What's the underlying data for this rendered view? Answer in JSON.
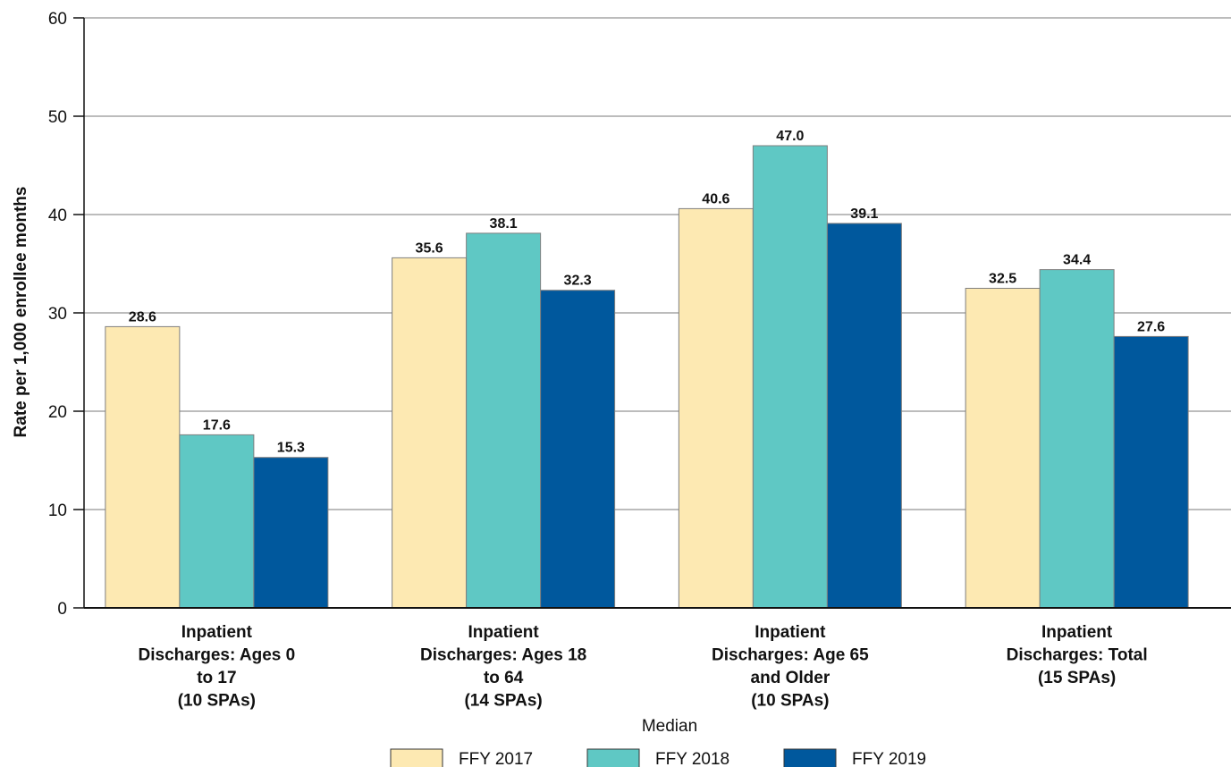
{
  "chart_data": {
    "type": "bar",
    "title": "",
    "xlabel": "",
    "ylabel": "Rate per 1,000 enrollee months",
    "ylim": [
      0,
      60
    ],
    "yticks": [
      0,
      10,
      20,
      30,
      40,
      50,
      60
    ],
    "grid": true,
    "legend_title": "Median",
    "legend_position": "bottom",
    "categories": [
      [
        "Inpatient",
        "Discharges: Ages 0",
        "to 17",
        "(10 SPAs)"
      ],
      [
        "Inpatient",
        "Discharges: Ages 18",
        "to 64",
        "(14 SPAs)"
      ],
      [
        "Inpatient",
        "Discharges: Age 65",
        "and Older",
        "(10 SPAs)"
      ],
      [
        "Inpatient",
        "Discharges: Total",
        "(15 SPAs)"
      ]
    ],
    "series": [
      {
        "name": "FFY 2017",
        "color": "#FDE9B2",
        "values": [
          28.6,
          35.6,
          40.6,
          32.5
        ],
        "labels": [
          "28.6",
          "35.6",
          "40.6",
          "32.5"
        ]
      },
      {
        "name": "FFY 2018",
        "color": "#5FC8C4",
        "values": [
          17.6,
          38.1,
          47.0,
          34.4
        ],
        "labels": [
          "17.6",
          "38.1",
          "47.0",
          "34.4"
        ]
      },
      {
        "name": "FFY 2019",
        "color": "#00589D",
        "values": [
          15.3,
          32.3,
          39.1,
          27.6
        ],
        "labels": [
          "15.3",
          "32.3",
          "39.1",
          "27.6"
        ]
      }
    ]
  }
}
